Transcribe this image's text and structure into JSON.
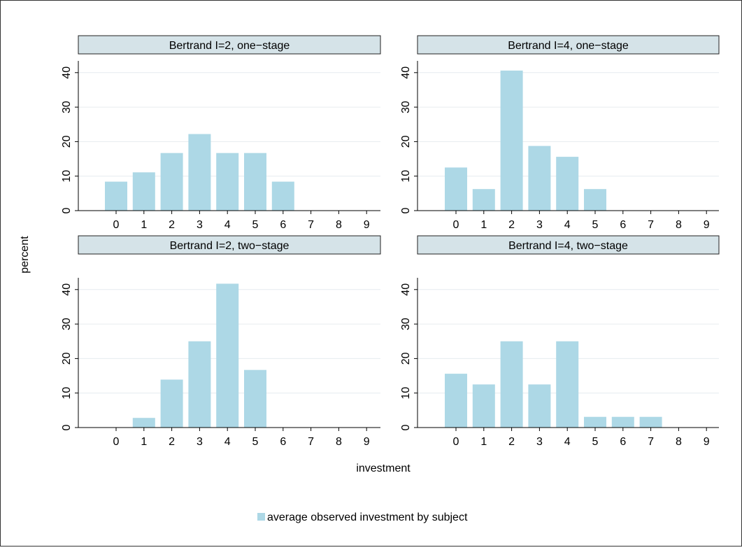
{
  "chart_data": {
    "type": "bar",
    "ylabel": "percent",
    "xlabel": "investment",
    "legend": {
      "position": "bottom",
      "entries": [
        "average observed investment by subject"
      ]
    },
    "colors": {
      "bar": "#add8e6",
      "panel_header": "#d5e3e8",
      "grid": "#e6ecef",
      "axis": "#000000"
    },
    "x_ticks": [
      "0",
      "1",
      "2",
      "3",
      "4",
      "5",
      "6",
      "7",
      "8",
      "9"
    ],
    "y_ticks": [
      "0",
      "10",
      "20",
      "30",
      "40"
    ],
    "ylim": [
      0,
      43
    ],
    "grid": true,
    "panels": [
      {
        "title": "Bertrand I=2, one−stage",
        "categories": [
          0,
          1,
          2,
          3,
          4,
          5,
          6,
          7,
          8,
          9
        ],
        "values": [
          8.4,
          11.1,
          16.7,
          22.2,
          16.7,
          16.7,
          8.4,
          0,
          0,
          0
        ]
      },
      {
        "title": "Bertrand I=4, one−stage",
        "categories": [
          0,
          1,
          2,
          3,
          4,
          5,
          6,
          7,
          8,
          9
        ],
        "values": [
          12.5,
          6.25,
          40.6,
          18.75,
          15.6,
          6.25,
          0,
          0,
          0,
          0
        ]
      },
      {
        "title": "Bertrand I=2, two−stage",
        "categories": [
          0,
          1,
          2,
          3,
          4,
          5,
          6,
          7,
          8,
          9
        ],
        "values": [
          0,
          2.8,
          13.9,
          25.0,
          41.7,
          16.7,
          0,
          0,
          0,
          0
        ]
      },
      {
        "title": "Bertrand I=4, two−stage",
        "categories": [
          0,
          1,
          2,
          3,
          4,
          5,
          6,
          7,
          8,
          9
        ],
        "values": [
          15.6,
          12.5,
          25.0,
          12.5,
          25.0,
          3.1,
          3.1,
          3.1,
          0,
          0
        ]
      }
    ]
  }
}
